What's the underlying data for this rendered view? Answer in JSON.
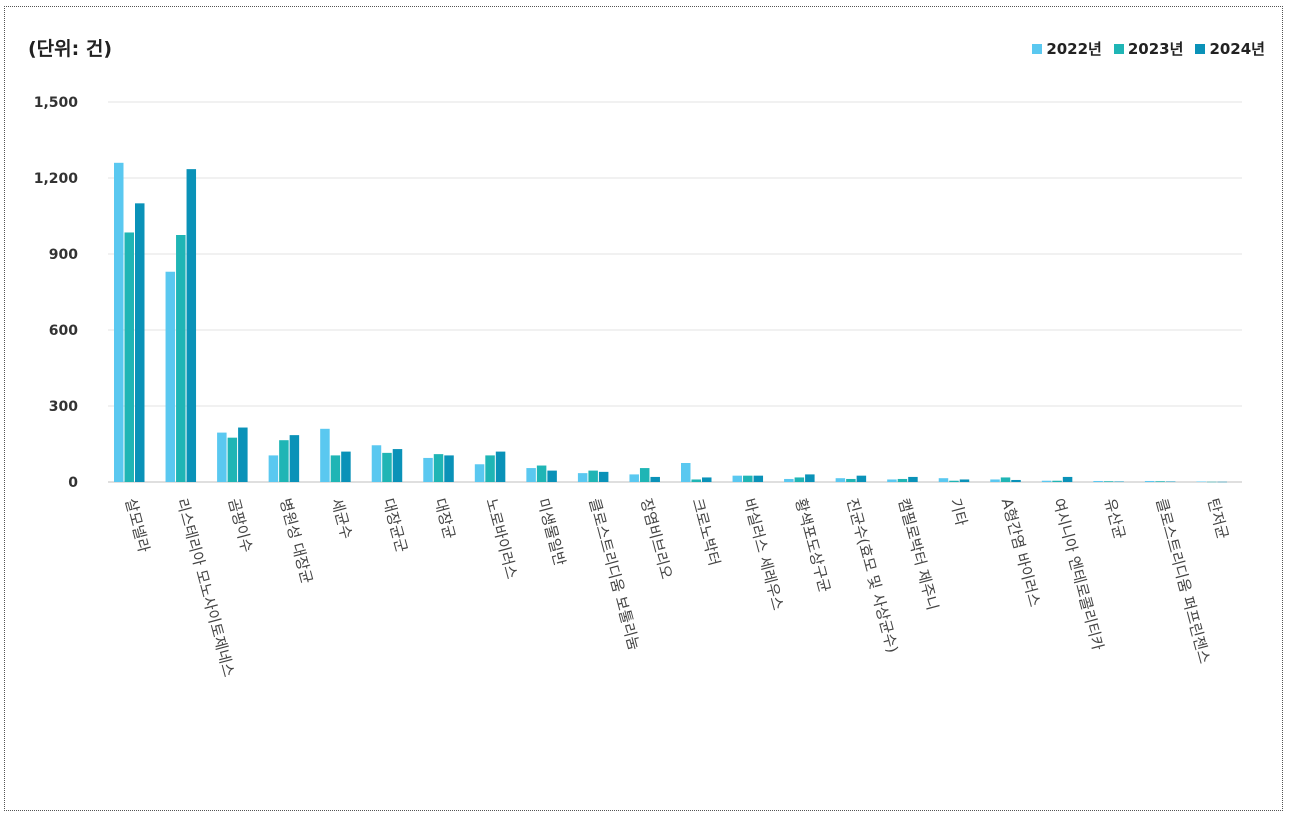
{
  "chart_data": {
    "type": "bar",
    "unit_label": "(단위: 건)",
    "title": "",
    "xlabel": "",
    "ylabel": "",
    "ylim": [
      0,
      1500
    ],
    "yticks": [
      0,
      300,
      600,
      900,
      1200,
      1500
    ],
    "ytick_labels": [
      "0",
      "300",
      "600",
      "900",
      "1,200",
      "1,500"
    ],
    "grid": true,
    "legend_position": "top-right",
    "categories": [
      "살모넬라",
      "리스테리아 모노사이토제네스",
      "곰팡이수",
      "병원성 대장균",
      "세균수",
      "대장균군",
      "대장균",
      "노로바이러스",
      "미생물일반",
      "클로스트리디움 보툴리눔",
      "장염비브리오",
      "크로노박터",
      "바실러스 세레우스",
      "황색포도상구균",
      "진균수(효모 및 사상균수)",
      "캠필로박터 제주니",
      "기타",
      "A형간염 바이러스",
      "여시니아 엔테로콜리티카",
      "유산균",
      "클로스트리디움 퍼프린젠스",
      "탄저균"
    ],
    "series": [
      {
        "name": "2022년",
        "color": "#5ac8f0",
        "values": [
          1260,
          830,
          195,
          105,
          210,
          145,
          95,
          70,
          55,
          35,
          30,
          75,
          25,
          12,
          15,
          10,
          15,
          10,
          5,
          4,
          4,
          2
        ]
      },
      {
        "name": "2023년",
        "color": "#1fb5b5",
        "values": [
          985,
          975,
          175,
          165,
          105,
          115,
          110,
          105,
          65,
          45,
          55,
          10,
          25,
          18,
          12,
          12,
          5,
          18,
          5,
          3,
          3,
          1
        ]
      },
      {
        "name": "2024년",
        "color": "#0a92b8",
        "values": [
          1100,
          1235,
          215,
          185,
          120,
          130,
          105,
          120,
          45,
          40,
          20,
          18,
          25,
          30,
          25,
          20,
          10,
          8,
          20,
          2,
          2,
          1
        ]
      }
    ]
  }
}
